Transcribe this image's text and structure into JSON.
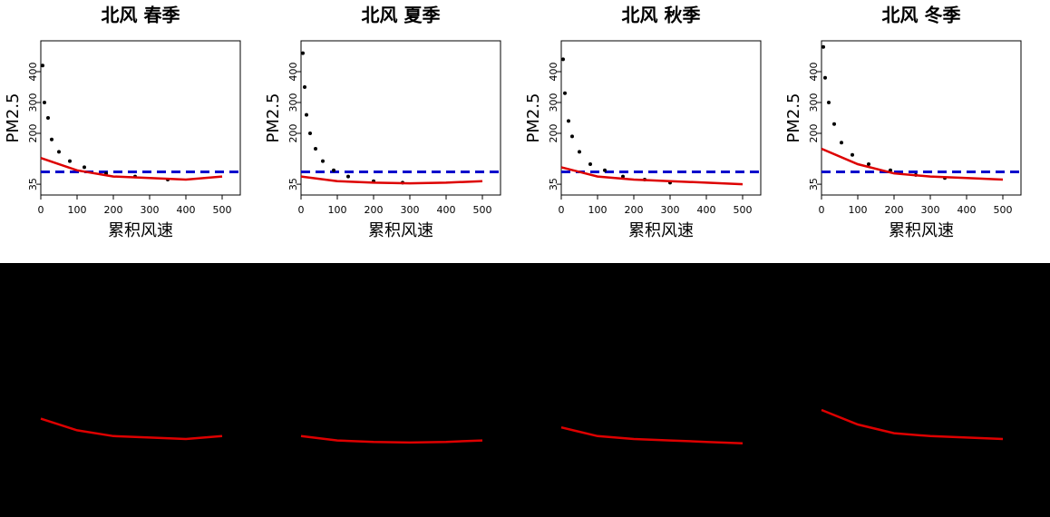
{
  "chart_data": [
    {
      "type": "scatter",
      "title": "北风 春季",
      "xlabel": "累积风速",
      "ylabel": "PM2.5",
      "xlim": [
        0,
        550
      ],
      "ylim": [
        0,
        500
      ],
      "xticks": [
        0,
        100,
        200,
        300,
        400,
        500
      ],
      "yticks": [
        35,
        200,
        300,
        400
      ],
      "hline": 75,
      "hline_color": "#0000cc",
      "points": {
        "color": "#000000",
        "x": [
          5,
          10,
          20,
          30,
          50,
          80,
          120,
          180,
          260,
          350
        ],
        "y": [
          420,
          300,
          250,
          180,
          140,
          110,
          90,
          70,
          60,
          50
        ]
      },
      "smooth": {
        "color": "#dd0000",
        "x": [
          0,
          100,
          200,
          300,
          400,
          500
        ],
        "y": [
          120,
          80,
          60,
          55,
          50,
          60
        ]
      }
    },
    {
      "type": "scatter",
      "title": "北风 夏季",
      "xlabel": "累积风速",
      "ylabel": "PM2.5",
      "xlim": [
        0,
        550
      ],
      "ylim": [
        0,
        500
      ],
      "xticks": [
        0,
        100,
        200,
        300,
        400,
        500
      ],
      "yticks": [
        35,
        200,
        300,
        400
      ],
      "hline": 75,
      "hline_color": "#0000cc",
      "points": {
        "color": "#000000",
        "x": [
          5,
          10,
          15,
          25,
          40,
          60,
          90,
          130,
          200,
          280
        ],
        "y": [
          460,
          350,
          260,
          200,
          150,
          110,
          80,
          60,
          45,
          40
        ]
      },
      "smooth": {
        "color": "#dd0000",
        "x": [
          0,
          100,
          200,
          300,
          400,
          500
        ],
        "y": [
          60,
          45,
          40,
          38,
          40,
          45
        ]
      }
    },
    {
      "type": "scatter",
      "title": "北风 秋季",
      "xlabel": "累积风速",
      "ylabel": "PM2.5",
      "xlim": [
        0,
        550
      ],
      "ylim": [
        0,
        500
      ],
      "xticks": [
        0,
        100,
        200,
        300,
        400,
        500
      ],
      "yticks": [
        35,
        200,
        300,
        400
      ],
      "hline": 75,
      "hline_color": "#0000cc",
      "points": {
        "color": "#000000",
        "x": [
          5,
          10,
          20,
          30,
          50,
          80,
          120,
          170,
          230,
          300
        ],
        "y": [
          440,
          330,
          240,
          190,
          140,
          100,
          80,
          60,
          50,
          40
        ]
      },
      "smooth": {
        "color": "#dd0000",
        "x": [
          0,
          100,
          200,
          300,
          400,
          500
        ],
        "y": [
          90,
          60,
          50,
          45,
          40,
          35
        ]
      }
    },
    {
      "type": "scatter",
      "title": "北风 冬季",
      "xlabel": "累积风速",
      "ylabel": "PM2.5",
      "xlim": [
        0,
        550
      ],
      "ylim": [
        0,
        500
      ],
      "xticks": [
        0,
        100,
        200,
        300,
        400,
        500
      ],
      "yticks": [
        35,
        200,
        300,
        400
      ],
      "hline": 75,
      "hline_color": "#0000cc",
      "points": {
        "color": "#000000",
        "x": [
          5,
          10,
          20,
          35,
          55,
          85,
          130,
          190,
          260,
          340
        ],
        "y": [
          480,
          380,
          300,
          230,
          170,
          130,
          100,
          80,
          65,
          55
        ]
      },
      "smooth": {
        "color": "#dd0000",
        "x": [
          0,
          100,
          200,
          300,
          400,
          500
        ],
        "y": [
          150,
          100,
          70,
          60,
          55,
          50
        ]
      }
    }
  ]
}
